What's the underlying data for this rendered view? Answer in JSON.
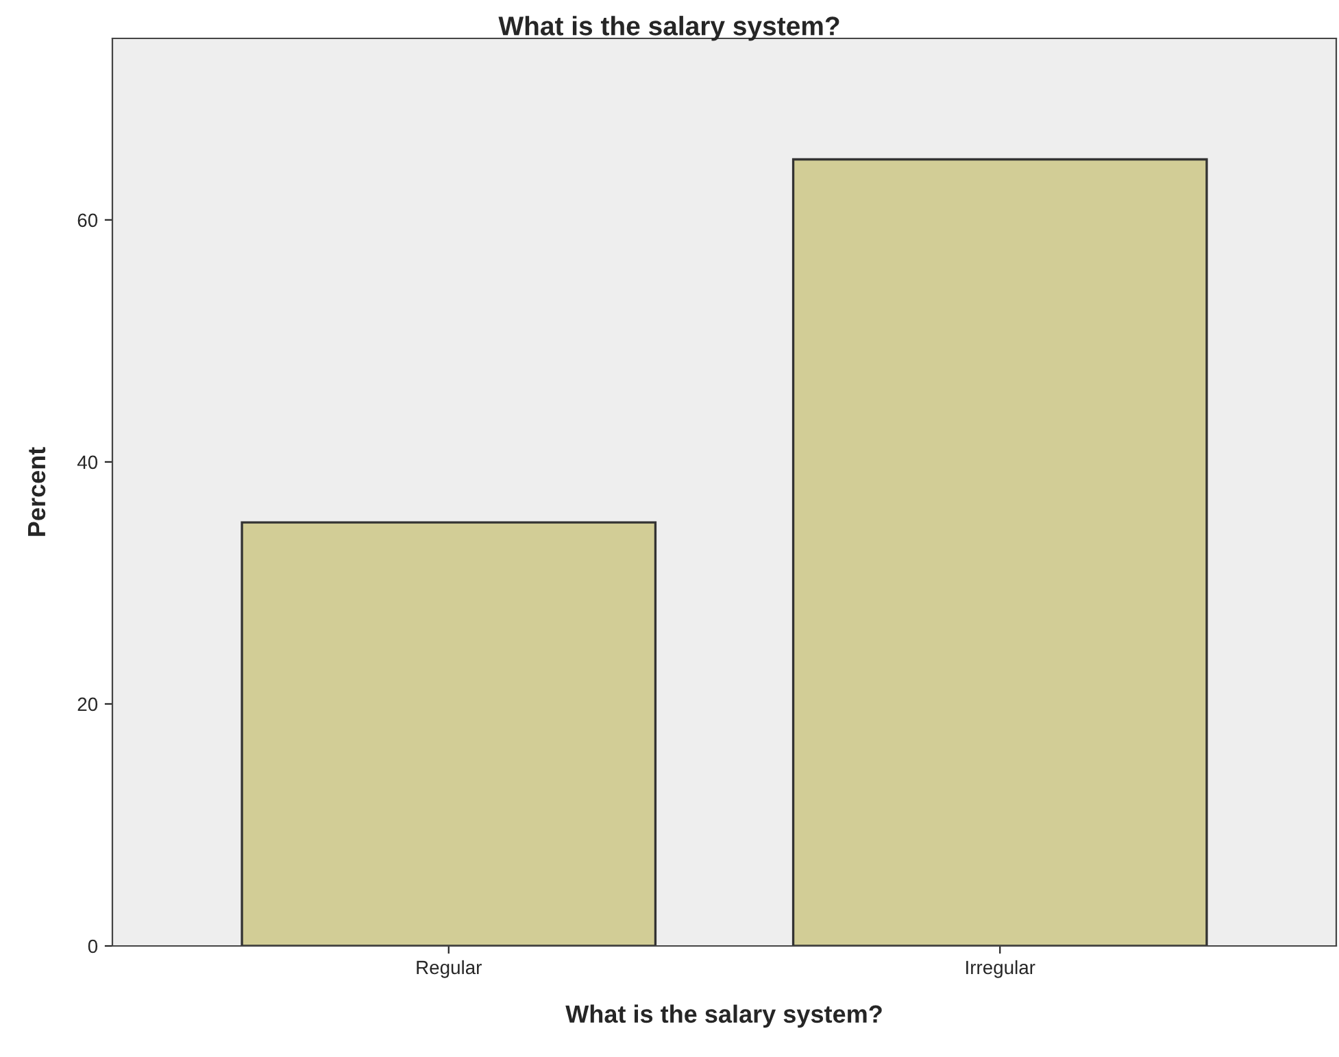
{
  "chart_data": {
    "type": "bar",
    "title": "What is the salary system?",
    "xlabel": "What is the salary system?",
    "ylabel": "Percent",
    "categories": [
      "Regular",
      "Irregular"
    ],
    "values": [
      35,
      65
    ],
    "color": "#d2cd96",
    "ylim": [
      0,
      75
    ],
    "yticks": [
      0,
      20,
      40,
      60
    ],
    "grid": false,
    "legend": false
  }
}
